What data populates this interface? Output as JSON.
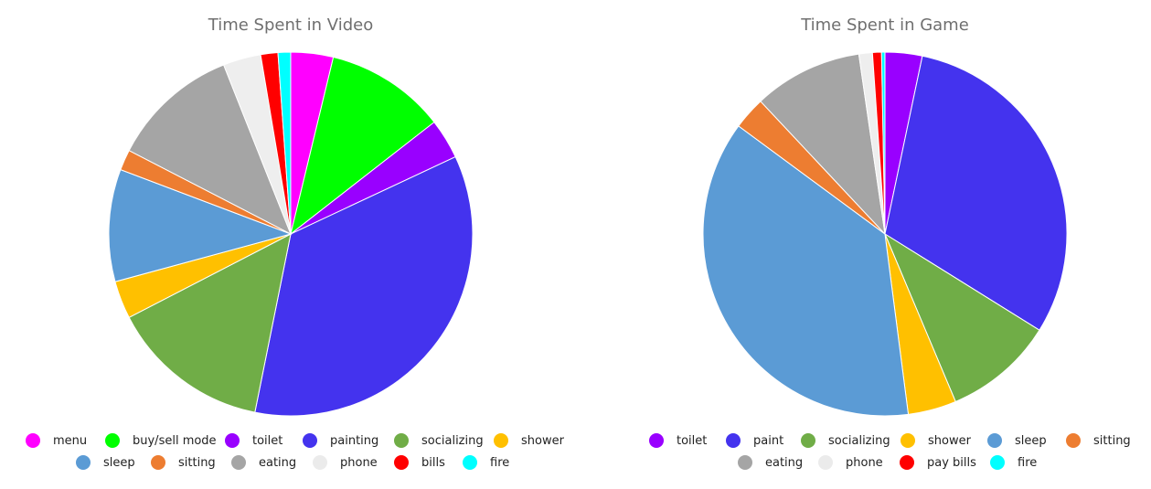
{
  "chart_data": [
    {
      "type": "pie",
      "title": "Time Spent in Video",
      "slices": [
        {
          "label": "menu",
          "value": 3.7,
          "color": "#ff00ff"
        },
        {
          "label": "buy/sell mode",
          "value": 10.5,
          "color": "#00ff00"
        },
        {
          "label": "toilet",
          "value": 3.5,
          "color": "#9900ff"
        },
        {
          "label": "painting",
          "value": 34.5,
          "color": "#4433ee"
        },
        {
          "label": "socializing",
          "value": 14.0,
          "color": "#70ad47"
        },
        {
          "label": "shower",
          "value": 3.3,
          "color": "#ffc000"
        },
        {
          "label": "sleep",
          "value": 9.8,
          "color": "#5b9bd5"
        },
        {
          "label": "sitting",
          "value": 1.8,
          "color": "#ed7d31"
        },
        {
          "label": "eating",
          "value": 11.2,
          "color": "#a5a5a5"
        },
        {
          "label": "phone",
          "value": 3.3,
          "color": "#eeeeee"
        },
        {
          "label": "bills",
          "value": 1.5,
          "color": "#ff0000"
        },
        {
          "label": "fire",
          "value": 1.1,
          "color": "#00ffff"
        }
      ],
      "legend": "bottom"
    },
    {
      "type": "pie",
      "title": "Time Spent in Game",
      "slices": [
        {
          "label": "toilet",
          "value": 3.3,
          "color": "#9900ff"
        },
        {
          "label": "paint",
          "value": 30.6,
          "color": "#4433ee"
        },
        {
          "label": "socializing",
          "value": 9.8,
          "color": "#70ad47"
        },
        {
          "label": "shower",
          "value": 4.3,
          "color": "#ffc000"
        },
        {
          "label": "sleep",
          "value": 37.2,
          "color": "#5b9bd5"
        },
        {
          "label": "sitting",
          "value": 2.9,
          "color": "#ed7d31"
        },
        {
          "label": "eating",
          "value": 9.7,
          "color": "#a5a5a5"
        },
        {
          "label": "phone",
          "value": 1.2,
          "color": "#eeeeee"
        },
        {
          "label": "pay bills",
          "value": 0.8,
          "color": "#ff0000"
        },
        {
          "label": "fire",
          "value": 0.3,
          "color": "#00ffff"
        }
      ],
      "legend": "bottom"
    }
  ]
}
